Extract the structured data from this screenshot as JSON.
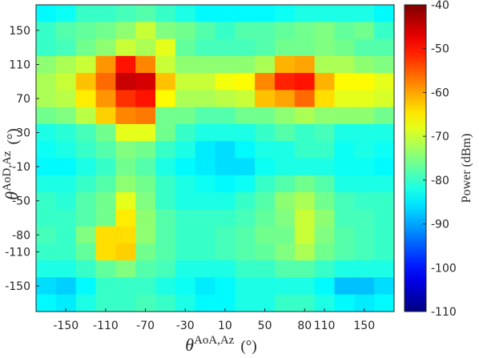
{
  "chart_data": {
    "type": "heatmap",
    "xlabel": {
      "symbol": "θ",
      "superscript": "AoA,Az",
      "unit": "(°)"
    },
    "ylabel": {
      "symbol": "θ",
      "superscript": "AoD,Az",
      "unit": "(°)"
    },
    "x_tick_labels": [
      "-150",
      "-110",
      "-70",
      "-30",
      "10",
      "50",
      "80",
      "110",
      "150"
    ],
    "y_tick_labels": [
      "150",
      "110",
      "70",
      "30",
      "-10",
      "-50",
      "-80",
      "-110",
      "-150"
    ],
    "x_centers": [
      -170,
      -150,
      -130,
      -110,
      -90,
      -70,
      -50,
      -30,
      -10,
      10,
      30,
      50,
      70,
      80,
      110,
      130,
      150,
      170
    ],
    "y_centers": [
      170,
      150,
      130,
      110,
      90,
      70,
      50,
      30,
      10,
      -10,
      -30,
      -50,
      -70,
      -80,
      -110,
      -130,
      -150,
      -170
    ],
    "colorbar": {
      "label": "Power (dBm)",
      "min": -110,
      "max": -40,
      "ticks": [
        "-40",
        "-50",
        "-60",
        "-70",
        "-80",
        "-90",
        "-100",
        "-110"
      ]
    },
    "colormap": "jet",
    "values": [
      [
        -84,
        -83,
        -80,
        -80,
        -79,
        -78,
        -80,
        -82,
        -84,
        -84,
        -84,
        -84,
        -83,
        -82,
        -82,
        -82,
        -82,
        -84
      ],
      [
        -80,
        -78,
        -77,
        -76,
        -74,
        -70,
        -75,
        -76,
        -78,
        -80,
        -78,
        -78,
        -77,
        -76,
        -75,
        -77,
        -76,
        -80
      ],
      [
        -80,
        -79,
        -76,
        -74,
        -70,
        -72,
        -68,
        -77,
        -79,
        -79,
        -79,
        -78,
        -76,
        -76,
        -75,
        -76,
        -78,
        -78
      ],
      [
        -74,
        -72,
        -70,
        -59,
        -50,
        -58,
        -70,
        -74,
        -74,
        -74,
        -74,
        -72,
        -61,
        -60,
        -72,
        -72,
        -74,
        -75
      ],
      [
        -72,
        -70,
        -62,
        -56,
        -45,
        -46,
        -62,
        -70,
        -70,
        -67,
        -66,
        -58,
        -51,
        -50,
        -61,
        -66,
        -66,
        -68
      ],
      [
        -72,
        -71,
        -65,
        -59,
        -52,
        -50,
        -66,
        -72,
        -72,
        -71,
        -70,
        -62,
        -60,
        -56,
        -64,
        -68,
        -68,
        -69
      ],
      [
        -76,
        -75,
        -71,
        -63,
        -58,
        -57,
        -76,
        -76,
        -78,
        -78,
        -76,
        -76,
        -74,
        -72,
        -74,
        -74,
        -74,
        -76
      ],
      [
        -82,
        -81,
        -79,
        -76,
        -68,
        -68,
        -76,
        -80,
        -82,
        -82,
        -82,
        -80,
        -78,
        -80,
        -79,
        -82,
        -82,
        -82
      ],
      [
        -83,
        -82,
        -80,
        -78,
        -75,
        -76,
        -80,
        -82,
        -85,
        -86,
        -84,
        -82,
        -82,
        -80,
        -80,
        -83,
        -82,
        -83
      ],
      [
        -84,
        -84,
        -82,
        -80,
        -76,
        -78,
        -82,
        -84,
        -85,
        -86,
        -86,
        -83,
        -82,
        -82,
        -82,
        -83,
        -83,
        -84
      ],
      [
        -82,
        -82,
        -80,
        -78,
        -74,
        -76,
        -80,
        -82,
        -83,
        -84,
        -83,
        -80,
        -78,
        -76,
        -78,
        -82,
        -82,
        -82
      ],
      [
        -80,
        -81,
        -78,
        -76,
        -68,
        -75,
        -80,
        -82,
        -82,
        -82,
        -80,
        -78,
        -74,
        -72,
        -76,
        -79,
        -80,
        -80
      ],
      [
        -80,
        -80,
        -78,
        -76,
        -65,
        -74,
        -78,
        -80,
        -80,
        -80,
        -79,
        -77,
        -75,
        -70,
        -74,
        -79,
        -79,
        -80
      ],
      [
        -79,
        -80,
        -75,
        -64,
        -64,
        -74,
        -78,
        -80,
        -80,
        -79,
        -78,
        -76,
        -76,
        -70,
        -75,
        -78,
        -79,
        -80
      ],
      [
        -80,
        -80,
        -77,
        -64,
        -63,
        -76,
        -78,
        -80,
        -80,
        -79,
        -78,
        -77,
        -75,
        -72,
        -76,
        -78,
        -79,
        -80
      ],
      [
        -82,
        -82,
        -80,
        -77,
        -75,
        -78,
        -79,
        -82,
        -82,
        -82,
        -80,
        -80,
        -78,
        -78,
        -80,
        -82,
        -82,
        -82
      ],
      [
        -86,
        -87,
        -84,
        -80,
        -80,
        -80,
        -82,
        -83,
        -85,
        -84,
        -82,
        -82,
        -82,
        -82,
        -84,
        -88,
        -88,
        -86
      ],
      [
        -84,
        -85,
        -82,
        -80,
        -80,
        -79,
        -80,
        -82,
        -84,
        -84,
        -82,
        -82,
        -80,
        -80,
        -82,
        -84,
        -85,
        -84
      ]
    ]
  }
}
